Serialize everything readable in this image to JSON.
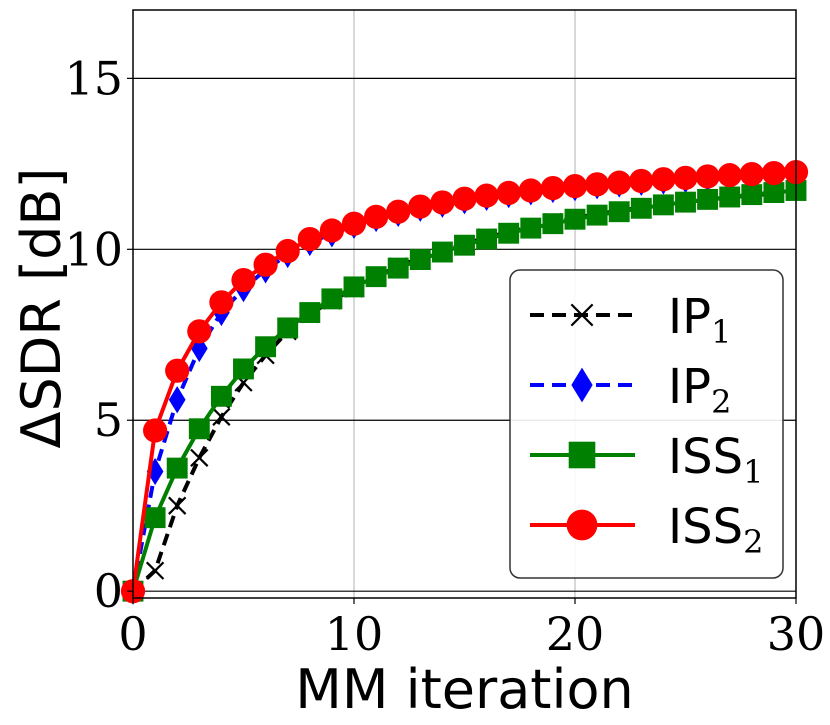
{
  "chart_data": {
    "type": "line",
    "title": "",
    "xlabel": "MM iteration",
    "ylabel": "ΔSDR [dB]",
    "xlim": [
      0,
      30
    ],
    "ylim": [
      -0.2,
      17
    ],
    "xticks": [
      0,
      10,
      20,
      30
    ],
    "yticks": [
      0,
      5,
      10,
      15
    ],
    "grid": true,
    "legend_position": "lower-right",
    "series": [
      {
        "name": "IP",
        "subscript": "1",
        "color": "#000000",
        "dashed": true,
        "marker": "x",
        "x": [
          0,
          1,
          2,
          3,
          4,
          5,
          6,
          7,
          8,
          9,
          10,
          11,
          12,
          13,
          14,
          15,
          16,
          17,
          18,
          19,
          20,
          21,
          22,
          23,
          24,
          25,
          26,
          27,
          28,
          29,
          30
        ],
        "values": [
          0.0,
          0.6,
          2.5,
          3.9,
          5.1,
          6.1,
          6.9,
          7.6,
          8.1,
          8.5,
          8.85,
          9.2,
          9.5,
          9.75,
          9.95,
          10.15,
          10.35,
          10.5,
          10.65,
          10.8,
          10.92,
          11.03,
          11.13,
          11.22,
          11.3,
          11.38,
          11.45,
          11.52,
          11.58,
          11.63,
          11.68
        ]
      },
      {
        "name": "IP",
        "subscript": "2",
        "color": "#0000ff",
        "dashed": true,
        "marker": "diamond",
        "x": [
          0,
          1,
          2,
          3,
          4,
          5,
          6,
          7,
          8,
          9,
          10,
          11,
          12,
          13,
          14,
          15,
          16,
          17,
          18,
          19,
          20,
          21,
          22,
          23,
          24,
          25,
          26,
          27,
          28,
          29,
          30
        ],
        "values": [
          0.0,
          3.5,
          5.6,
          7.1,
          8.15,
          8.85,
          9.4,
          9.85,
          10.2,
          10.45,
          10.7,
          10.9,
          11.05,
          11.2,
          11.32,
          11.42,
          11.52,
          11.6,
          11.68,
          11.75,
          11.8,
          11.86,
          11.91,
          11.96,
          12.0,
          12.04,
          12.08,
          12.12,
          12.15,
          12.18,
          12.2
        ]
      },
      {
        "name": "ISS",
        "subscript": "1",
        "color": "#008000",
        "dashed": false,
        "marker": "square",
        "x": [
          0,
          1,
          2,
          3,
          4,
          5,
          6,
          7,
          8,
          9,
          10,
          11,
          12,
          13,
          14,
          15,
          16,
          17,
          18,
          19,
          20,
          21,
          22,
          23,
          24,
          25,
          26,
          27,
          28,
          29,
          30
        ],
        "values": [
          0.0,
          2.15,
          3.6,
          4.75,
          5.7,
          6.5,
          7.15,
          7.7,
          8.15,
          8.55,
          8.9,
          9.2,
          9.45,
          9.7,
          9.92,
          10.12,
          10.3,
          10.47,
          10.62,
          10.75,
          10.88,
          11.0,
          11.1,
          11.2,
          11.3,
          11.38,
          11.46,
          11.53,
          11.6,
          11.66,
          11.72
        ]
      },
      {
        "name": "ISS",
        "subscript": "2",
        "color": "#ff0000",
        "dashed": false,
        "marker": "circle",
        "x": [
          0,
          1,
          2,
          3,
          4,
          5,
          6,
          7,
          8,
          9,
          10,
          11,
          12,
          13,
          14,
          15,
          16,
          17,
          18,
          19,
          20,
          21,
          22,
          23,
          24,
          25,
          26,
          27,
          28,
          29,
          30
        ],
        "values": [
          0.0,
          4.7,
          6.45,
          7.6,
          8.45,
          9.1,
          9.55,
          9.95,
          10.3,
          10.55,
          10.75,
          10.95,
          11.1,
          11.25,
          11.37,
          11.48,
          11.57,
          11.65,
          11.72,
          11.79,
          11.85,
          11.9,
          11.95,
          12.0,
          12.05,
          12.09,
          12.13,
          12.17,
          12.2,
          12.23,
          12.26
        ]
      }
    ]
  }
}
